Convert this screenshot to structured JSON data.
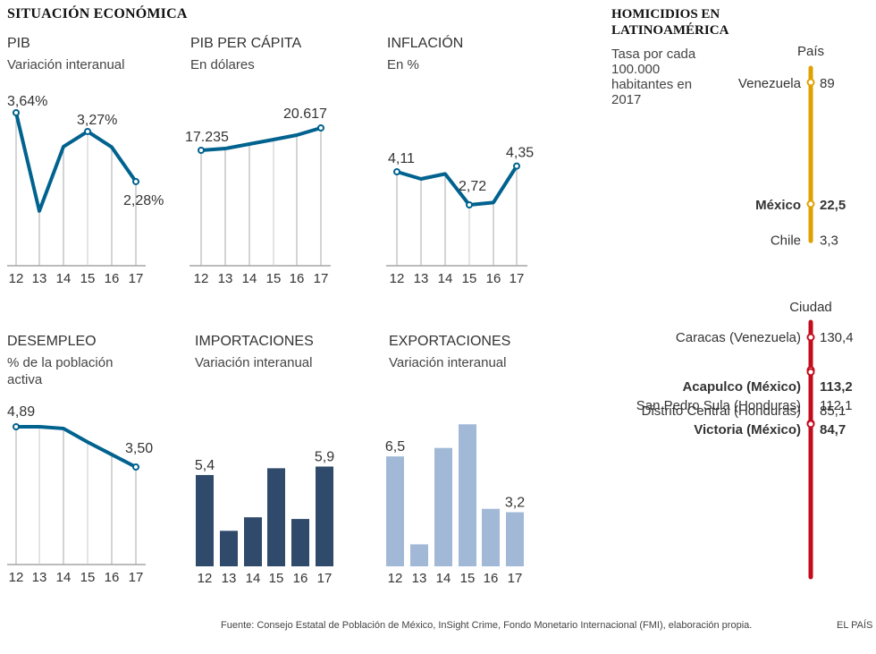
{
  "header": {
    "title": "SITUACIÓN ECONÓMICA"
  },
  "colors": {
    "line": "#00628f",
    "import_bar": "#2f4a6a",
    "export_bar": "#a1b9d7",
    "grid": "#aaaaaa",
    "pais_line": "#e0a100",
    "ciudad_line": "#c30c1c"
  },
  "chart_data": [
    {
      "id": "pib",
      "type": "line",
      "title": "PIB",
      "subtitle": "Variación interanual",
      "categories": [
        "12",
        "13",
        "14",
        "15",
        "16",
        "17"
      ],
      "values": [
        3.64,
        1.7,
        2.97,
        3.27,
        2.96,
        2.28
      ],
      "labels": [
        {
          "index": 0,
          "text": "3,64%"
        },
        {
          "index": 3,
          "text": "3,27%"
        },
        {
          "index": 5,
          "text": "2,28%"
        }
      ],
      "ylim": [
        0.6,
        3.7
      ],
      "grid": true
    },
    {
      "id": "pibpc",
      "type": "line",
      "title": "PIB PER CÁPITA",
      "subtitle": "En dólares",
      "categories": [
        "12",
        "13",
        "14",
        "15",
        "16",
        "17"
      ],
      "values": [
        17235,
        17500,
        18180,
        18860,
        19535,
        20617
      ],
      "labels": [
        {
          "index": 0,
          "text": "17.235"
        },
        {
          "index": 5,
          "text": "20.617"
        }
      ],
      "ylim": [
        0,
        21000
      ],
      "grid": true
    },
    {
      "id": "inflacion",
      "type": "line",
      "title": "INFLACIÓN",
      "subtitle": "En %",
      "categories": [
        "12",
        "13",
        "14",
        "15",
        "16",
        "17"
      ],
      "values": [
        4.11,
        3.81,
        4.02,
        2.72,
        2.82,
        4.35
      ],
      "labels": [
        {
          "index": 0,
          "text": "4,11"
        },
        {
          "index": 3,
          "text": "2,72"
        },
        {
          "index": 5,
          "text": "4,35"
        }
      ],
      "ylim": [
        0,
        6
      ],
      "grid": true
    },
    {
      "id": "desempleo",
      "type": "line",
      "title": "DESEMPLEO",
      "subtitle": "% de la población activa",
      "categories": [
        "12",
        "13",
        "14",
        "15",
        "16",
        "17"
      ],
      "values": [
        4.89,
        4.89,
        4.83,
        4.36,
        3.93,
        3.5
      ],
      "labels": [
        {
          "index": 0,
          "text": "4,89"
        },
        {
          "index": 5,
          "text": "3,50"
        }
      ],
      "ylim": [
        0,
        5
      ],
      "grid": true
    },
    {
      "id": "importaciones",
      "type": "bar",
      "title": "IMPORTACIONES",
      "subtitle": "Variación interanual",
      "categories": [
        "12",
        "13",
        "14",
        "15",
        "16",
        "17"
      ],
      "values": [
        5.4,
        2.1,
        2.9,
        5.8,
        2.8,
        5.9
      ],
      "labels": [
        {
          "index": 0,
          "text": "5,4"
        },
        {
          "index": 5,
          "text": "5,9"
        }
      ],
      "ylim": [
        0,
        9
      ]
    },
    {
      "id": "exportaciones",
      "type": "bar",
      "title": "EXPORTACIONES",
      "subtitle": "Variación interanual",
      "categories": [
        "12",
        "13",
        "14",
        "15",
        "16",
        "17"
      ],
      "values": [
        6.5,
        1.3,
        7.0,
        8.4,
        3.4,
        3.2
      ],
      "labels": [
        {
          "index": 0,
          "text": "6,5"
        },
        {
          "index": 5,
          "text": "3,2"
        }
      ],
      "ylim": [
        0,
        9
      ]
    },
    {
      "id": "homicidios",
      "type": "scatter",
      "title": "HOMICIDIOS EN LATINOAMÉRICA",
      "subtitle": "Tasa por cada 100.000 habitantes en 2017",
      "groups": [
        {
          "name": "País",
          "items": [
            {
              "label": "Venezuela",
              "value": 89,
              "value_text": "89",
              "bold": false,
              "marker": true
            },
            {
              "label": "México",
              "value": 22.5,
              "value_text": "22,5",
              "bold": true,
              "marker": true
            },
            {
              "label": "Chile",
              "value": 3.3,
              "value_text": "3,3",
              "bold": false,
              "marker": false
            }
          ]
        },
        {
          "name": "Ciudad",
          "items": [
            {
              "label": "Caracas (Venezuela)",
              "value": 130.4,
              "value_text": "130,4",
              "bold": false,
              "marker": true
            },
            {
              "label": "Acapulco (México)",
              "value": 113.2,
              "value_text": "113,2",
              "bold": true,
              "marker": true
            },
            {
              "label": "San Pedro Sula (Honduras)",
              "value": 112.1,
              "value_text": "112,1",
              "bold": false,
              "marker": true
            },
            {
              "label": "Distrito Central (Honduras)",
              "value": 85.1,
              "value_text": "85,1",
              "bold": false,
              "marker": true
            },
            {
              "label": "Victoria (México)",
              "value": 84.7,
              "value_text": "84,7",
              "bold": true,
              "marker": true
            }
          ]
        }
      ]
    }
  ],
  "homicidios": {
    "title": "HOMICIDIOS EN LATINOAMÉRICA",
    "desc": "Tasa por cada 100.000 habitantes en 2017",
    "pais_label": "País",
    "ciudad_label": "Ciudad"
  },
  "footer": {
    "source": "Fuente: Consejo Estatal de Población de México, InSight Crime, Fondo Monetario Internacional (FMI), elaboración propia.",
    "brand": "EL PAÍS"
  }
}
